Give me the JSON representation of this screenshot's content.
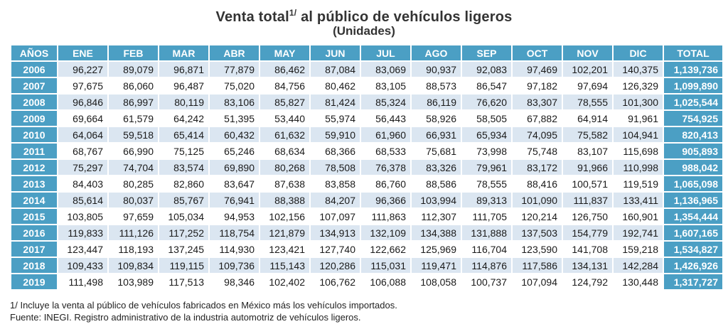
{
  "title": {
    "main": "Venta total",
    "sup": "1/",
    "rest": " al público de vehículos ligeros",
    "subtitle": "(Unidades)"
  },
  "table": {
    "headers": [
      "AÑOS",
      "ENE",
      "FEB",
      "MAR",
      "ABR",
      "MAY",
      "JUN",
      "JUL",
      "AGO",
      "SEP",
      "OCT",
      "NOV",
      "DIC",
      "TOTAL"
    ],
    "rows": [
      [
        "2006",
        "96,227",
        "89,079",
        "96,871",
        "77,879",
        "86,462",
        "87,084",
        "83,069",
        "90,937",
        "92,083",
        "97,469",
        "102,201",
        "140,375",
        "1,139,736"
      ],
      [
        "2007",
        "97,675",
        "86,060",
        "96,487",
        "75,020",
        "84,756",
        "80,462",
        "83,105",
        "88,573",
        "86,547",
        "97,182",
        "97,694",
        "126,329",
        "1,099,890"
      ],
      [
        "2008",
        "96,846",
        "86,997",
        "80,119",
        "83,106",
        "85,827",
        "81,424",
        "85,324",
        "86,119",
        "76,620",
        "83,307",
        "78,555",
        "101,300",
        "1,025,544"
      ],
      [
        "2009",
        "69,664",
        "61,579",
        "64,242",
        "51,395",
        "53,440",
        "55,974",
        "56,443",
        "58,926",
        "58,505",
        "67,882",
        "64,914",
        "91,961",
        "754,925"
      ],
      [
        "2010",
        "64,064",
        "59,518",
        "65,414",
        "60,432",
        "61,632",
        "59,910",
        "61,960",
        "66,931",
        "65,934",
        "74,095",
        "75,582",
        "104,941",
        "820,413"
      ],
      [
        "2011",
        "68,767",
        "66,990",
        "75,125",
        "65,246",
        "68,634",
        "68,366",
        "68,533",
        "75,681",
        "73,998",
        "75,748",
        "83,107",
        "115,698",
        "905,893"
      ],
      [
        "2012",
        "75,297",
        "74,704",
        "83,574",
        "69,890",
        "80,268",
        "78,508",
        "76,378",
        "83,326",
        "79,961",
        "83,172",
        "91,966",
        "110,998",
        "988,042"
      ],
      [
        "2013",
        "84,403",
        "80,285",
        "82,860",
        "83,647",
        "87,638",
        "83,858",
        "86,760",
        "88,586",
        "78,555",
        "88,416",
        "100,571",
        "119,519",
        "1,065,098"
      ],
      [
        "2014",
        "85,614",
        "80,037",
        "85,767",
        "76,941",
        "88,388",
        "84,207",
        "96,366",
        "103,994",
        "89,313",
        "101,090",
        "111,837",
        "133,411",
        "1,136,965"
      ],
      [
        "2015",
        "103,805",
        "97,659",
        "105,034",
        "94,953",
        "102,156",
        "107,097",
        "111,863",
        "112,307",
        "111,705",
        "120,214",
        "126,750",
        "160,901",
        "1,354,444"
      ],
      [
        "2016",
        "119,833",
        "111,126",
        "117,252",
        "118,754",
        "121,879",
        "134,913",
        "132,109",
        "134,388",
        "131,888",
        "137,503",
        "154,779",
        "192,741",
        "1,607,165"
      ],
      [
        "2017",
        "123,447",
        "118,193",
        "137,245",
        "114,930",
        "123,421",
        "127,740",
        "122,662",
        "125,969",
        "116,704",
        "123,590",
        "141,708",
        "159,218",
        "1,534,827"
      ],
      [
        "2018",
        "109,433",
        "109,834",
        "119,115",
        "109,736",
        "115,143",
        "120,286",
        "115,031",
        "119,471",
        "114,876",
        "117,586",
        "134,131",
        "142,284",
        "1,426,926"
      ],
      [
        "2019",
        "111,498",
        "103,989",
        "117,513",
        "98,346",
        "102,402",
        "106,762",
        "106,088",
        "108,058",
        "100,737",
        "107,094",
        "124,792",
        "130,448",
        "1,317,727"
      ]
    ]
  },
  "notes": [
    "1/ Incluye la venta al público de vehículos fabricados en México más los vehículos importados.",
    "Fuente: INEGI. Registro administrativo de la industria automotriz de vehículos ligeros."
  ],
  "colors": {
    "header_bg": "#4b9fc4",
    "stripe_bg": "#dbe6f1",
    "header_text": "#ffffff"
  }
}
